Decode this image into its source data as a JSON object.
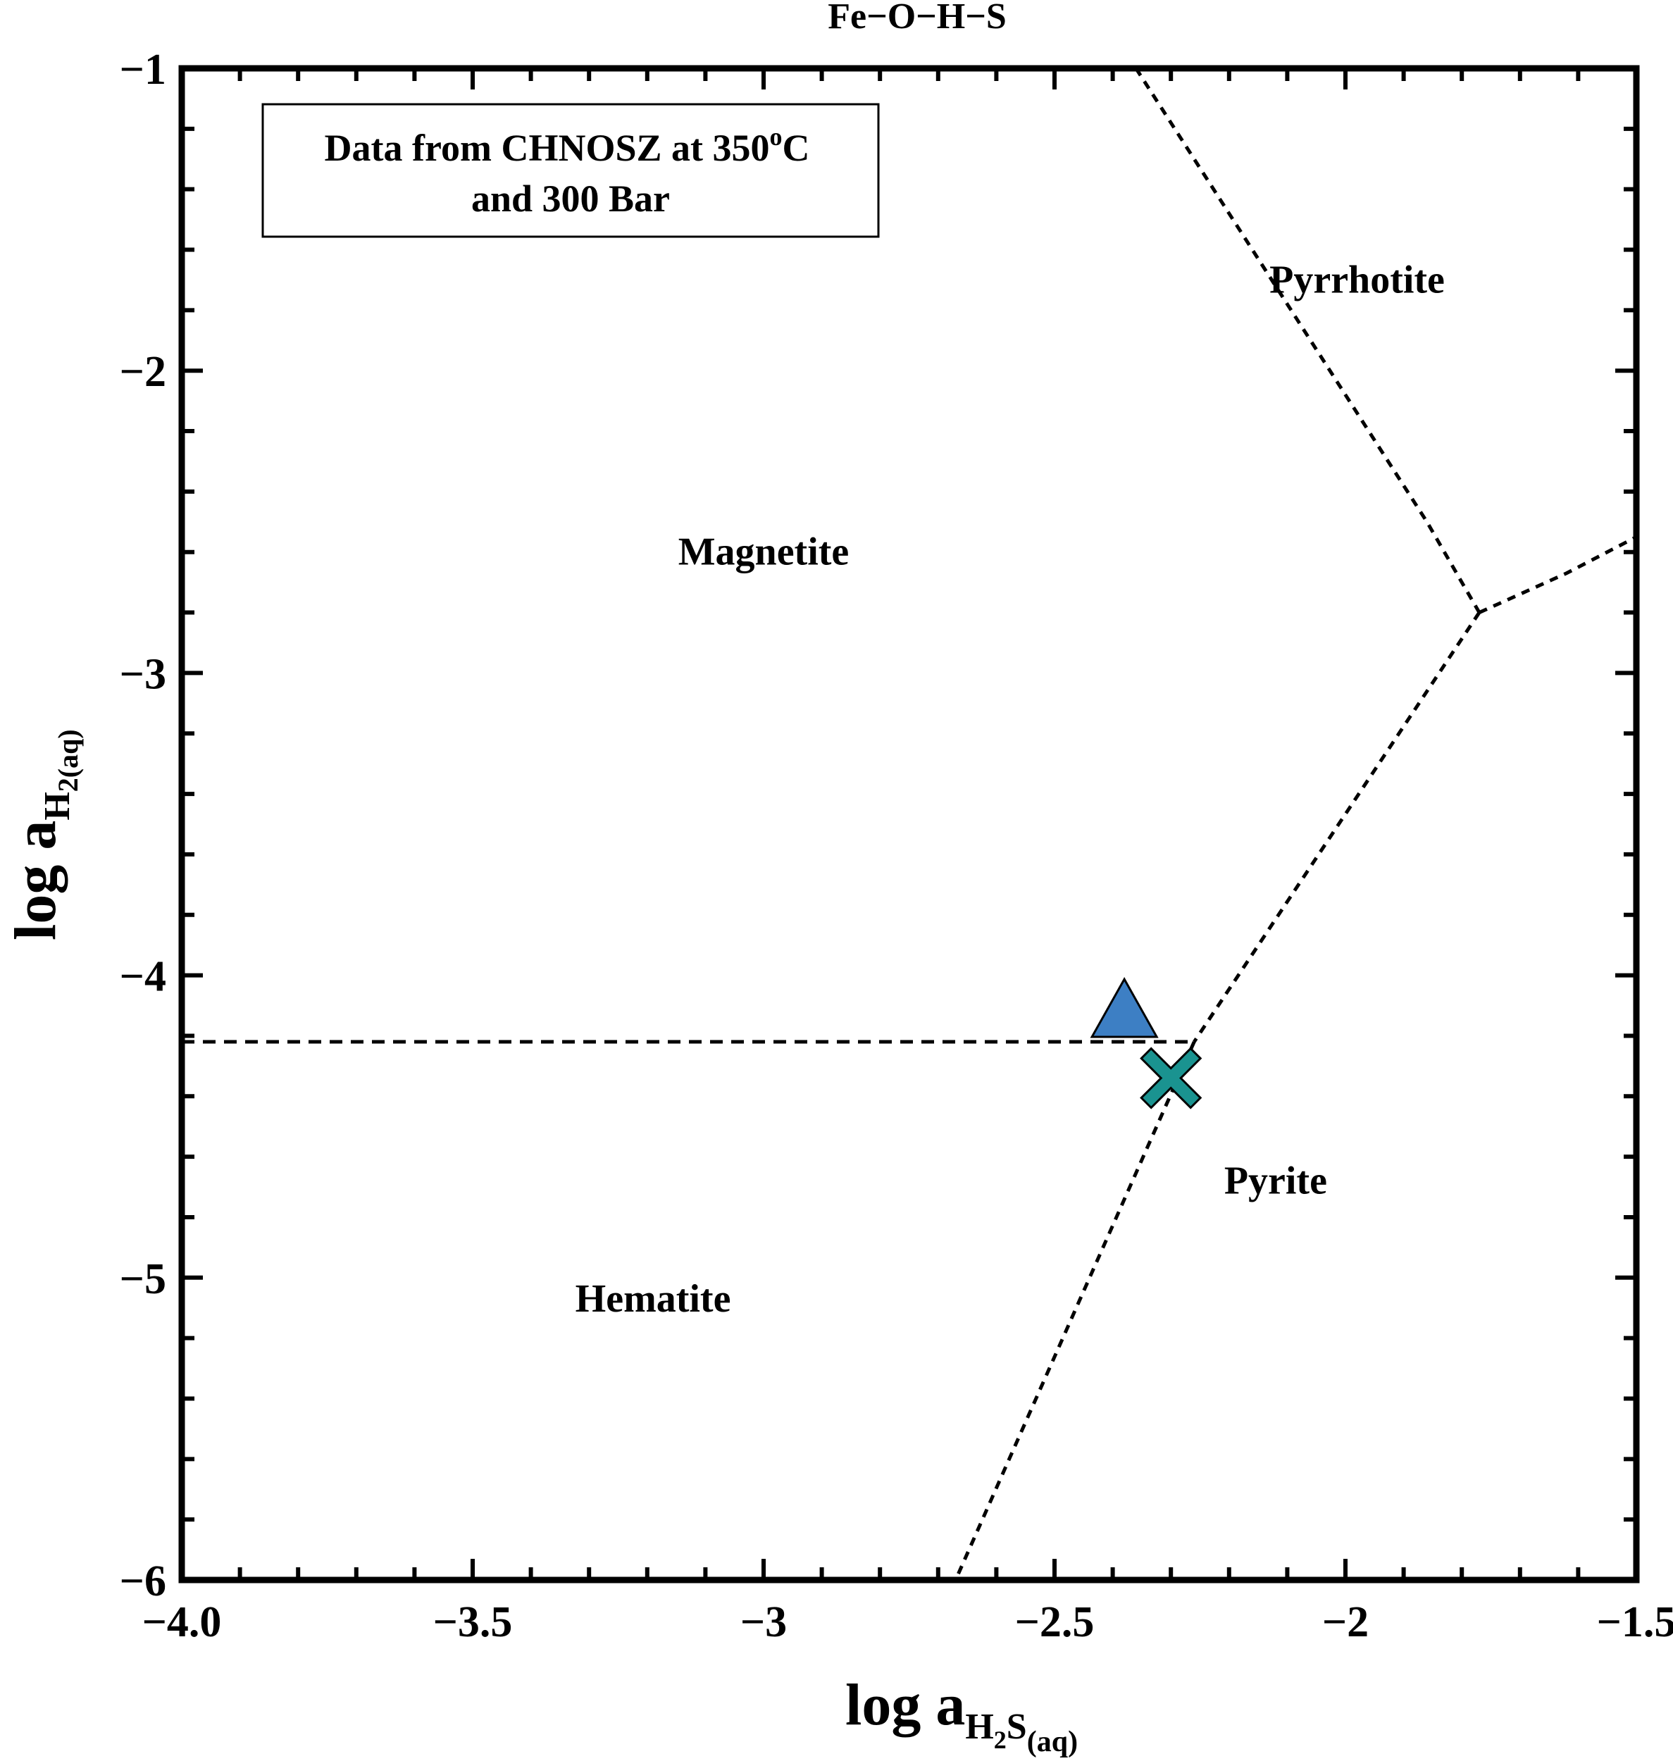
{
  "chart_data": {
    "type": "scatter",
    "title": "Fe−O−H−S",
    "xlabel": {
      "main": "log a",
      "sub": "H",
      "sub2": "2",
      "sub3": "S",
      "sub4": "(aq)"
    },
    "ylabel": {
      "main": "log a",
      "sub": "H",
      "sub2": "2(aq)"
    },
    "xlim": [
      -4.0,
      -1.5
    ],
    "ylim": [
      -6,
      -1
    ],
    "x_ticks": [
      -4.0,
      -3.5,
      -3,
      -2.5,
      -2,
      -1.5
    ],
    "x_tick_labels": [
      "−4.0",
      "−3.5",
      "−3",
      "−2.5",
      "−2",
      "−1.5"
    ],
    "y_ticks": [
      -1,
      -2,
      -3,
      -4,
      -5,
      -6
    ],
    "y_tick_labels": [
      "−1",
      "−2",
      "−3",
      "−4",
      "−5",
      "−6"
    ],
    "x_minor_step": 0.1,
    "y_minor_step": 0.2,
    "grid": false,
    "note": [
      "Data from CHNOSZ at 350",
      "o",
      "C",
      "and 300 Bar"
    ],
    "regions": [
      {
        "name": "Magnetite",
        "x": -3.0,
        "y": -2.6
      },
      {
        "name": "Pyrrhotite",
        "x": -1.98,
        "y": -1.7
      },
      {
        "name": "Pyrite",
        "x": -2.12,
        "y": -4.68
      },
      {
        "name": "Hematite",
        "x": -3.19,
        "y": -5.07
      }
    ],
    "boundaries": [
      {
        "name": "magnetite-hematite",
        "points": [
          [
            -4.0,
            -4.22
          ],
          [
            -2.26,
            -4.22
          ]
        ]
      },
      {
        "name": "magnetite-pyrrhotite",
        "points": [
          [
            -2.36,
            -1.0
          ],
          [
            -1.86,
            -2.5
          ],
          [
            -1.77,
            -2.8
          ]
        ]
      },
      {
        "name": "pyrrhotite-pyrite",
        "points": [
          [
            -1.77,
            -2.8
          ],
          [
            -1.62,
            -2.67
          ],
          [
            -1.5,
            -2.55
          ]
        ]
      },
      {
        "name": "magnetite-pyrite",
        "points": [
          [
            -1.77,
            -2.8
          ],
          [
            -2.26,
            -4.22
          ]
        ]
      },
      {
        "name": "hematite-pyrite",
        "points": [
          [
            -2.26,
            -4.22
          ],
          [
            -2.67,
            -6.0
          ]
        ]
      }
    ],
    "markers": [
      {
        "shape": "triangle",
        "x": -2.38,
        "y": -4.12,
        "color": "#3d7fc4"
      },
      {
        "shape": "x",
        "x": -2.3,
        "y": -4.34,
        "color": "#1a9390"
      }
    ]
  }
}
